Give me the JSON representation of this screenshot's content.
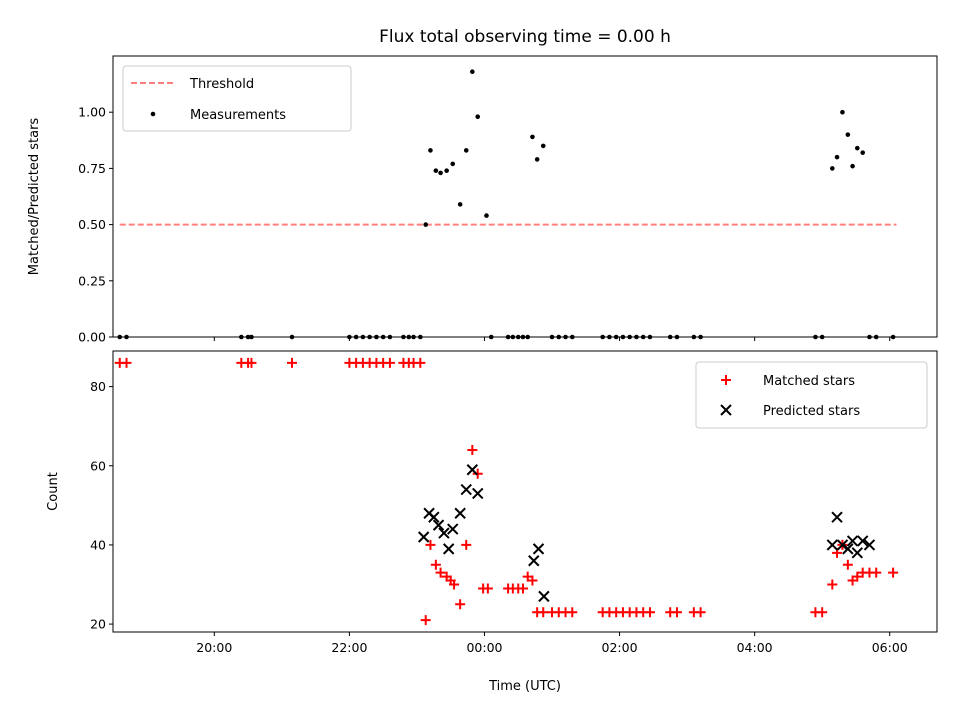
{
  "chart_data": [
    {
      "type": "scatter",
      "title": "Flux total observing time = 0.00 h",
      "xlabel": "",
      "ylabel": "Matched/Predicted stars",
      "xlim": [
        -5.5,
        6.7
      ],
      "ylim": [
        0.0,
        1.25
      ],
      "yticks": [
        0.0,
        0.25,
        0.5,
        0.75,
        1.0
      ],
      "ytick_labels": [
        "0.00",
        "0.25",
        "0.50",
        "0.75",
        "1.00"
      ],
      "legend_position": "upper-left",
      "legend": [
        "Threshold",
        "Measurements"
      ],
      "threshold": {
        "name": "Threshold",
        "y": 0.5,
        "x": [
          -5.4,
          6.1
        ],
        "color": "#ff7f7f"
      },
      "series": [
        {
          "name": "Measurements",
          "color": "#000000",
          "x": [
            -5.4,
            -5.3,
            -3.6,
            -3.5,
            -3.45,
            -2.85,
            -2.0,
            -1.9,
            -1.8,
            -1.7,
            -1.6,
            -1.5,
            -1.4,
            -1.2,
            -1.12,
            -1.05,
            -0.95,
            -0.87,
            -0.8,
            -0.72,
            -0.65,
            -0.56,
            -0.47,
            -0.36,
            -0.27,
            -0.18,
            -0.1,
            0.03,
            0.1,
            0.35,
            0.42,
            0.5,
            0.57,
            0.64,
            0.71,
            0.78,
            0.87,
            1.0,
            1.1,
            1.2,
            1.3,
            1.75,
            1.85,
            1.95,
            2.05,
            2.15,
            2.25,
            2.35,
            2.45,
            2.75,
            2.85,
            3.1,
            3.2,
            4.9,
            5.0,
            5.15,
            5.22,
            5.3,
            5.38,
            5.45,
            5.52,
            5.6,
            5.7,
            5.8,
            6.05
          ],
          "y": [
            0,
            0,
            0,
            0,
            0,
            0,
            0,
            0,
            0,
            0,
            0,
            0,
            0,
            0,
            0,
            0,
            0,
            0.5,
            0.83,
            0.74,
            0.73,
            0.74,
            0.77,
            0.59,
            0.83,
            1.18,
            0.98,
            0.54,
            0,
            0,
            0,
            0,
            0,
            0,
            0.89,
            0.79,
            0.85,
            0,
            0,
            0,
            0,
            0,
            0,
            0,
            0,
            0,
            0,
            0,
            0,
            0,
            0,
            0,
            0,
            0,
            0,
            0.75,
            0.8,
            1.0,
            0.9,
            0.76,
            0.84,
            0.82,
            0,
            0,
            0
          ]
        }
      ]
    },
    {
      "type": "scatter",
      "title": "",
      "xlabel": "Time (UTC)",
      "ylabel": "Count",
      "xlim": [
        -5.5,
        6.7
      ],
      "ylim": [
        18,
        89
      ],
      "yticks": [
        20,
        40,
        60,
        80
      ],
      "ytick_labels": [
        "20",
        "40",
        "60",
        "80"
      ],
      "xticks": [
        -4,
        -2,
        0,
        2,
        4,
        6
      ],
      "xtick_labels": [
        "20:00",
        "22:00",
        "00:00",
        "02:00",
        "04:00",
        "06:00"
      ],
      "legend_position": "upper-right",
      "legend": [
        "Matched stars",
        "Predicted stars"
      ],
      "series": [
        {
          "name": "Matched stars",
          "marker": "+",
          "color": "#ff0000",
          "x": [
            -5.4,
            -5.3,
            -3.6,
            -3.5,
            -3.45,
            -2.85,
            -2.0,
            -1.9,
            -1.8,
            -1.7,
            -1.6,
            -1.5,
            -1.4,
            -1.2,
            -1.12,
            -1.05,
            -0.95,
            -0.87,
            -0.8,
            -0.72,
            -0.65,
            -0.56,
            -0.5,
            -0.45,
            -0.36,
            -0.27,
            -0.18,
            -0.1,
            -0.02,
            0.05,
            0.35,
            0.42,
            0.5,
            0.57,
            0.64,
            0.71,
            0.78,
            0.87,
            1.0,
            1.1,
            1.2,
            1.3,
            1.75,
            1.85,
            1.95,
            2.05,
            2.15,
            2.25,
            2.35,
            2.45,
            2.75,
            2.85,
            3.1,
            3.2,
            4.9,
            5.0,
            5.15,
            5.22,
            5.3,
            5.38,
            5.45,
            5.52,
            5.6,
            5.7,
            5.8,
            6.05
          ],
          "y": [
            86,
            86,
            86,
            86,
            86,
            86,
            86,
            86,
            86,
            86,
            86,
            86,
            86,
            86,
            86,
            86,
            86,
            21,
            40,
            35,
            33,
            32,
            31,
            30,
            25,
            40,
            64,
            58,
            29,
            29,
            29,
            29,
            29,
            29,
            32,
            31,
            23,
            23,
            23,
            23,
            23,
            23,
            23,
            23,
            23,
            23,
            23,
            23,
            23,
            23,
            23,
            23,
            23,
            23,
            23,
            23,
            30,
            38,
            40,
            35,
            31,
            32,
            33,
            33,
            33,
            33
          ]
        },
        {
          "name": "Predicted stars",
          "marker": "x",
          "color": "#000000",
          "x": [
            -0.9,
            -0.82,
            -0.75,
            -0.68,
            -0.6,
            -0.53,
            -0.47,
            -0.36,
            -0.27,
            -0.18,
            -0.1,
            0.73,
            0.8,
            0.88,
            5.15,
            5.22,
            5.3,
            5.38,
            5.45,
            5.52,
            5.6,
            5.7
          ],
          "y": [
            42,
            48,
            47,
            45,
            43,
            39,
            44,
            48,
            54,
            59,
            53,
            36,
            39,
            27,
            40,
            47,
            40,
            39,
            41,
            38,
            41,
            40
          ]
        }
      ]
    }
  ]
}
